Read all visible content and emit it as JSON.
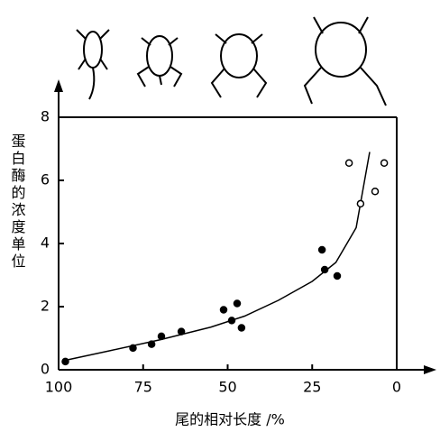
{
  "chart_data": {
    "type": "scatter",
    "x_label": "尾的相对长度 /%",
    "y_label": "蛋白酶的浓度单位",
    "xlim": [
      100,
      0
    ],
    "ylim": [
      0,
      8
    ],
    "xticks": [
      100,
      75,
      50,
      25,
      0
    ],
    "yticks": [
      0,
      2,
      4,
      6,
      8
    ],
    "series": [
      {
        "color": "#000000",
        "filled": true,
        "x": [
          98,
          78,
          72.5,
          69.6,
          63.7,
          51.2,
          47.2,
          48.8,
          45.9,
          22.1,
          21.3,
          17.6
        ],
        "values": [
          0.26,
          0.69,
          0.81,
          1.06,
          1.21,
          1.9,
          2.1,
          1.56,
          1.33,
          3.8,
          3.17,
          2.97
        ]
      },
      {
        "color": "#000000",
        "filled": false,
        "x": [
          14.1,
          10.7,
          6.4,
          3.7
        ],
        "values": [
          6.55,
          5.26,
          5.65,
          6.55
        ]
      }
    ],
    "curve": {
      "x": [
        98,
        85,
        70,
        55,
        45,
        35,
        25,
        18,
        12,
        8
      ],
      "values": [
        0.3,
        0.6,
        0.95,
        1.35,
        1.7,
        2.2,
        2.8,
        3.4,
        4.5,
        6.9
      ]
    }
  }
}
